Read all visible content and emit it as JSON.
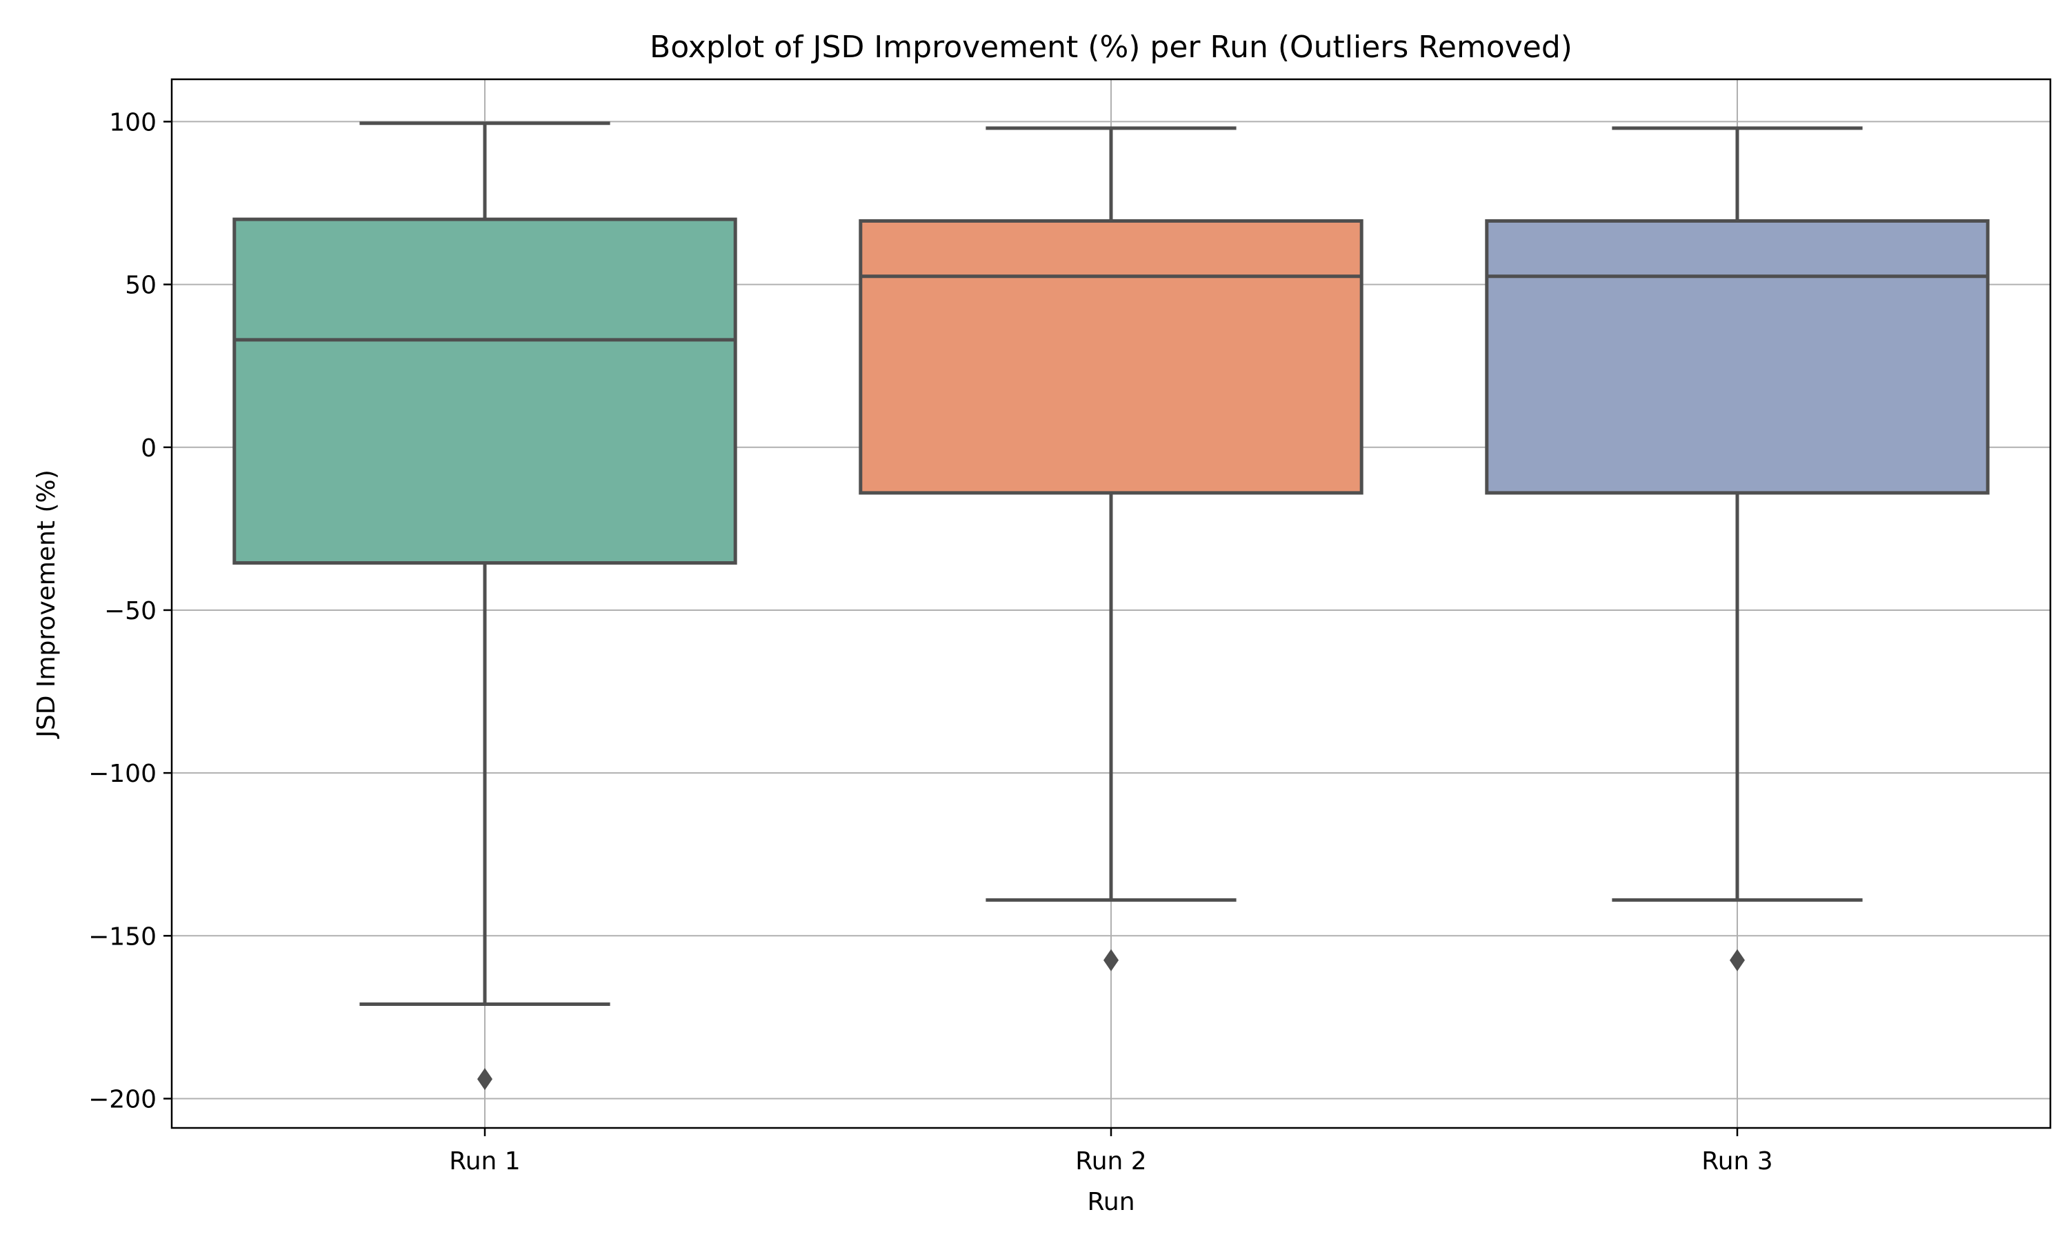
{
  "chart_data": {
    "type": "boxplot",
    "title": "Boxplot of JSD Improvement (%) per Run (Outliers Removed)",
    "xlabel": "Run",
    "ylabel": "JSD Improvement (%)",
    "ylim": [
      -209,
      113
    ],
    "yticks": [
      100,
      50,
      0,
      -50,
      -100,
      -150,
      -200
    ],
    "ytick_labels": [
      "100",
      "50",
      "0",
      "−50",
      "−100",
      "−150",
      "−200"
    ],
    "grid": true,
    "categories": [
      "Run 1",
      "Run 2",
      "Run 3"
    ],
    "boxes": [
      {
        "label": "Run 1",
        "whisker_low": -171,
        "q1": -35.5,
        "median": 33,
        "q3": 70,
        "whisker_high": 99.5,
        "fliers": [
          -194
        ],
        "color": "#73b3a0"
      },
      {
        "label": "Run 2",
        "whisker_low": -139,
        "q1": -14,
        "median": 52.5,
        "q3": 69.5,
        "whisker_high": 98,
        "fliers": [
          -157.5
        ],
        "color": "#e89674"
      },
      {
        "label": "Run 3",
        "whisker_low": -139,
        "q1": -14,
        "median": 52.5,
        "q3": 69.5,
        "whisker_high": 98,
        "fliers": [
          -157.5
        ],
        "color": "#95a3c2"
      }
    ]
  }
}
